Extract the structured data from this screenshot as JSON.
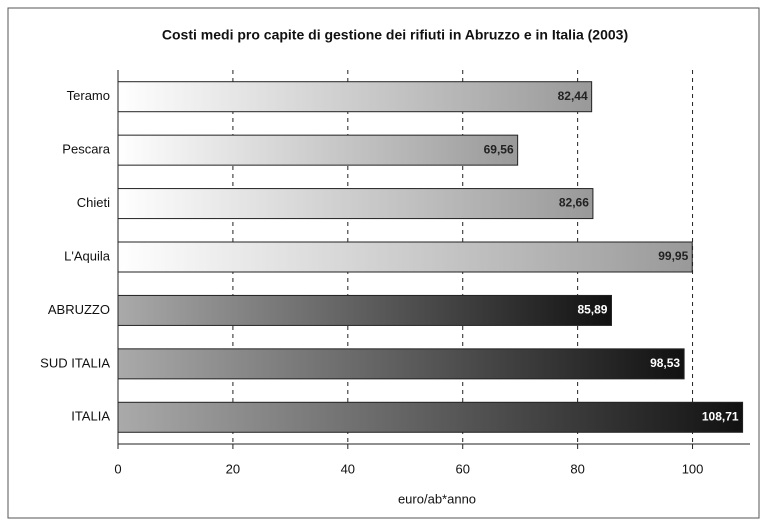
{
  "chart_data": {
    "type": "bar",
    "orientation": "horizontal",
    "title": "Costi medi pro capite di gestione dei rifiuti in Abruzzo e in Italia (2003)",
    "x_label": "euro/ab*anno",
    "categories": [
      "Teramo",
      "Pescara",
      "Chieti",
      "L'Aquila",
      "ABRUZZO",
      "SUD ITALIA",
      "ITALIA"
    ],
    "values": [
      82.44,
      69.56,
      82.66,
      99.95,
      85.89,
      98.53,
      108.71
    ],
    "value_labels": [
      "82,44",
      "69,56",
      "82,66",
      "99,95",
      "85,89",
      "98,53",
      "108,71"
    ],
    "colors": [
      "#bdbdbd",
      "#bdbdbd",
      "#bdbdbd",
      "#bdbdbd",
      "#1a1a1a",
      "#1a1a1a",
      "#1a1a1a"
    ],
    "xlim": [
      0,
      110
    ],
    "xticks": [
      0,
      20,
      40,
      60,
      80,
      100
    ],
    "grid": true
  }
}
